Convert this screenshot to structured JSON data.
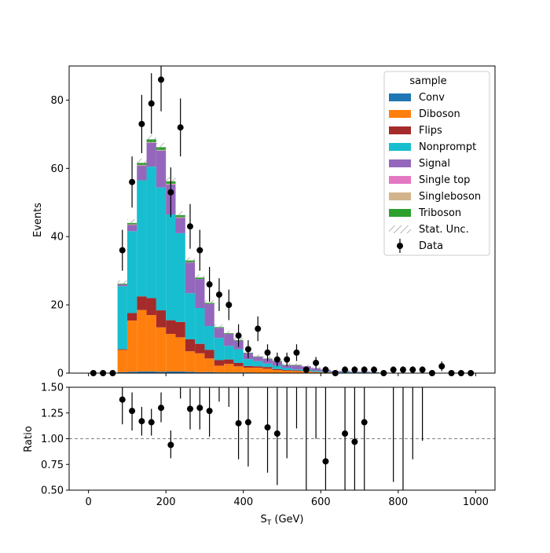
{
  "chart_data": [
    {
      "type": "bar",
      "stacked": true,
      "ylabel": "Events",
      "xlim": [
        -50,
        1050
      ],
      "ylim": [
        0,
        90
      ],
      "yticks": [
        0,
        20,
        40,
        60,
        80
      ],
      "bin_edges": [
        0,
        25,
        50,
        75,
        100,
        125,
        150,
        175,
        200,
        225,
        250,
        275,
        300,
        325,
        350,
        375,
        400,
        425,
        450,
        475,
        500,
        525,
        550,
        575,
        600,
        625,
        650,
        675,
        700,
        725,
        750,
        775,
        800,
        825,
        850,
        875,
        900,
        925,
        950,
        975,
        1000
      ],
      "series": [
        {
          "name": "Conv",
          "color": "#1f77b4",
          "values": [
            0,
            0,
            0,
            0.3,
            0.4,
            0.5,
            0.5,
            0.4,
            0.5,
            0.5,
            0.4,
            0.3,
            0.3,
            0.2,
            0.2,
            0.2,
            0.2,
            0.1,
            0.1,
            0.1,
            0.1,
            0.1,
            0.1,
            0,
            0,
            0,
            0,
            0,
            0,
            0,
            0,
            0,
            0,
            0,
            0,
            0,
            0,
            0,
            0,
            0
          ]
        },
        {
          "name": "Diboson",
          "color": "#ff7f0e",
          "values": [
            0,
            0,
            0,
            6.5,
            15,
            18,
            16.5,
            13,
            11,
            10,
            6,
            5.5,
            4,
            2,
            2.5,
            1.8,
            1.4,
            1.5,
            1.2,
            0.8,
            0.6,
            0.5,
            0.4,
            0.3,
            0.2,
            0.2,
            0.1,
            0.1,
            0.1,
            0.1,
            0,
            0,
            0,
            0,
            0,
            0,
            0,
            0,
            0,
            0
          ]
        },
        {
          "name": "Flips",
          "color": "#a52a2a",
          "values": [
            0,
            0,
            0,
            0.2,
            2.2,
            4,
            5,
            5,
            4,
            4.5,
            3.5,
            2.8,
            2.5,
            1.6,
            1.3,
            1,
            0.5,
            0.4,
            0.5,
            0.3,
            0.2,
            0.2,
            0.1,
            0.1,
            0.1,
            0,
            0,
            0,
            0,
            0,
            0,
            0,
            0,
            0,
            0,
            0,
            0,
            0,
            0,
            0
          ]
        },
        {
          "name": "Nonprompt",
          "color": "#17becf",
          "values": [
            0,
            0,
            0,
            18.5,
            24,
            34,
            38.5,
            36,
            31,
            26,
            13.5,
            10.5,
            7,
            6.5,
            4,
            4,
            2,
            1.5,
            1,
            1,
            0.6,
            0.3,
            0.5,
            0.3,
            0.2,
            0.1,
            0.2,
            0.1,
            0.1,
            0.1,
            0,
            0,
            0,
            0,
            0,
            0,
            0,
            0,
            0,
            0
          ]
        },
        {
          "name": "Signal",
          "color": "#9467bd",
          "values": [
            0,
            0,
            0,
            0.5,
            1.8,
            4.3,
            7,
            10.8,
            8.8,
            4.5,
            9,
            8.5,
            6.5,
            3,
            3.5,
            2.5,
            1.8,
            1.3,
            1.4,
            1.3,
            0.8,
            1.2,
            0.9,
            0.7,
            0.5,
            0.3,
            0.3,
            0.2,
            0.2,
            0.1,
            0,
            0,
            0,
            0,
            0,
            0,
            0,
            0,
            0,
            0
          ]
        },
        {
          "name": "Single top",
          "color": "#e377c2",
          "values": [
            0,
            0,
            0,
            0,
            0.1,
            0.1,
            0.1,
            0.1,
            0.1,
            0.1,
            0.1,
            0,
            0,
            0,
            0,
            0,
            0,
            0,
            0,
            0,
            0,
            0,
            0,
            0,
            0,
            0,
            0,
            0,
            0,
            0,
            0,
            0,
            0,
            0,
            0,
            0,
            0,
            0,
            0,
            0
          ]
        },
        {
          "name": "Singleboson",
          "color": "#d2b48c",
          "values": [
            0,
            0,
            0,
            0,
            0.1,
            0.1,
            0.1,
            0.1,
            0.1,
            0.1,
            0,
            0,
            0,
            0,
            0,
            0,
            0,
            0,
            0,
            0,
            0,
            0,
            0,
            0,
            0,
            0,
            0,
            0,
            0,
            0,
            0,
            0,
            0,
            0,
            0,
            0,
            0,
            0,
            0,
            0
          ]
        },
        {
          "name": "Triboson",
          "color": "#2ca02c",
          "values": [
            0,
            0,
            0,
            0.2,
            0.4,
            0.6,
            0.8,
            0.8,
            0.7,
            0.6,
            0.5,
            0.4,
            0.3,
            0.2,
            0.2,
            0.2,
            0.1,
            0.1,
            0.1,
            0.1,
            0.1,
            0.1,
            0,
            0,
            0,
            0,
            0,
            0,
            0,
            0,
            0,
            0,
            0,
            0,
            0,
            0,
            0,
            0,
            0,
            0
          ]
        }
      ],
      "stat_unc_label": "Stat. Unc.",
      "data": {
        "name": "Data",
        "x": [
          12.5,
          37.5,
          62.5,
          87.5,
          112.5,
          137.5,
          162.5,
          187.5,
          212.5,
          237.5,
          262.5,
          287.5,
          312.5,
          337.5,
          362.5,
          387.5,
          412.5,
          437.5,
          462.5,
          487.5,
          512.5,
          537.5,
          562.5,
          587.5,
          612.5,
          637.5,
          662.5,
          687.5,
          712.5,
          737.5,
          762.5,
          787.5,
          812.5,
          837.5,
          862.5,
          887.5,
          912.5,
          937.5,
          962.5,
          987.5
        ],
        "y": [
          0,
          0,
          0,
          36,
          56,
          73,
          79,
          86,
          53,
          72,
          43,
          36,
          26,
          23,
          20,
          11,
          7,
          13,
          6,
          4,
          4,
          6,
          1,
          3,
          1,
          0,
          1,
          1,
          1,
          1,
          0,
          1,
          1,
          1,
          1,
          0,
          2,
          0,
          0,
          0
        ]
      },
      "legend": {
        "title": "sample",
        "placement": "top-right"
      }
    },
    {
      "type": "scatter",
      "xlabel": "S",
      "xlabel_sub": "T",
      "xlabel_unit": " (GeV)",
      "ylabel": "Ratio",
      "xlim": [
        -50,
        1050
      ],
      "ylim": [
        0.5,
        1.5
      ],
      "xticks": [
        0,
        200,
        400,
        600,
        800,
        1000
      ],
      "yticks": [
        0.5,
        0.75,
        1.0,
        1.25,
        1.5
      ],
      "ytick_labels": [
        "0.50",
        "0.75",
        "1.00",
        "1.25",
        "1.50"
      ],
      "reference_line": 1.0,
      "points": [
        {
          "x": 87.5,
          "y": 1.38,
          "lo": 1.14,
          "hi": 1.62
        },
        {
          "x": 112.5,
          "y": 1.27,
          "lo": 1.08,
          "hi": 1.45
        },
        {
          "x": 137.5,
          "y": 1.17,
          "lo": 1.03,
          "hi": 1.31
        },
        {
          "x": 162.5,
          "y": 1.16,
          "lo": 1.03,
          "hi": 1.29
        },
        {
          "x": 187.5,
          "y": 1.3,
          "lo": 1.16,
          "hi": 1.45
        },
        {
          "x": 212.5,
          "y": 0.94,
          "lo": 0.81,
          "hi": 1.08
        },
        {
          "x": 237.5,
          "y": null,
          "lo": 1.39,
          "hi": 1.6
        },
        {
          "x": 262.5,
          "y": 1.29,
          "lo": 1.09,
          "hi": 1.49
        },
        {
          "x": 287.5,
          "y": 1.3,
          "lo": 1.09,
          "hi": 1.52
        },
        {
          "x": 312.5,
          "y": 1.27,
          "lo": 1.02,
          "hi": 1.52
        },
        {
          "x": 337.5,
          "y": null,
          "lo": 1.36,
          "hi": 1.6
        },
        {
          "x": 362.5,
          "y": null,
          "lo": 1.31,
          "hi": 1.6
        },
        {
          "x": 387.5,
          "y": 1.15,
          "lo": 0.8,
          "hi": 1.5
        },
        {
          "x": 412.5,
          "y": 1.16,
          "lo": 0.73,
          "hi": 1.6
        },
        {
          "x": 462.5,
          "y": 1.11,
          "lo": 0.67,
          "hi": 1.55
        },
        {
          "x": 487.5,
          "y": 1.05,
          "lo": 0.55,
          "hi": 1.55
        },
        {
          "x": 512.5,
          "y": null,
          "lo": 0.81,
          "hi": 1.6
        },
        {
          "x": 537.5,
          "y": null,
          "lo": 1.1,
          "hi": 1.6
        },
        {
          "x": 562.5,
          "y": null,
          "lo": 0.5,
          "hi": 1.6
        },
        {
          "x": 587.5,
          "y": null,
          "lo": 1.0,
          "hi": 1.6
        },
        {
          "x": 612.5,
          "y": 0.78,
          "lo": 0.5,
          "hi": 1.6
        },
        {
          "x": 662.5,
          "y": 1.05,
          "lo": 0.5,
          "hi": 1.6
        },
        {
          "x": 687.5,
          "y": 0.97,
          "lo": 0.5,
          "hi": 1.6
        },
        {
          "x": 712.5,
          "y": 1.16,
          "lo": 0.5,
          "hi": 1.6
        },
        {
          "x": 787.5,
          "y": null,
          "lo": 0.58,
          "hi": 1.6
        },
        {
          "x": 812.5,
          "y": null,
          "lo": 0.5,
          "hi": 1.6
        },
        {
          "x": 837.5,
          "y": null,
          "lo": 0.8,
          "hi": 1.6
        },
        {
          "x": 862.5,
          "y": null,
          "lo": 0.98,
          "hi": 1.6
        }
      ]
    }
  ]
}
